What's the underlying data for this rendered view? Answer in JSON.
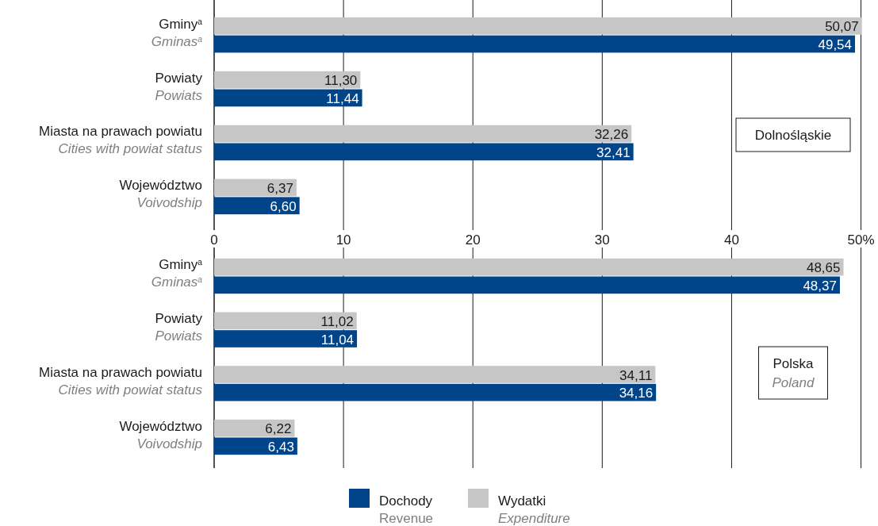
{
  "chart_data": [
    {
      "type": "bar",
      "orientation": "horizontal",
      "categories": [
        "Gminy$^{a}$\nGminas$^{a}$",
        "Powiaty\nPowiats",
        "Miasta na prawach powiatu\nCities with powiat status",
        "Województwo\nVoivodship"
      ],
      "series": [
        {
          "color": "#004489",
          "values": [
            49.54,
            11.44,
            32.41,
            6.6
          ],
          "value_labels": [
            "49,54",
            "11,44",
            "32,41",
            "6,60"
          ]
        },
        {
          "color": "#c6c6c6",
          "values": [
            50.07,
            11.3,
            32.26,
            6.37
          ],
          "value_labels": [
            "50,07",
            "11,30",
            "32,26",
            "6,37"
          ]
        }
      ],
      "xlim": [
        0,
        51.5
      ],
      "xticks": [
        0,
        10,
        20,
        30,
        40,
        {
          "value": 50,
          "label": "50%"
        }
      ],
      "grid": "x",
      "legend": false,
      "annotations": [
        "Dolnośląskie"
      ]
    },
    {
      "type": "bar",
      "orientation": "horizontal",
      "categories": [
        "Gminy$^{a}$\nGminas$^{a}$",
        "Powiaty\nPowiats",
        "Miasta na prawach powiatu\nCities with powiat status",
        "Województwo\nVoivodship"
      ],
      "series": [
        {
          "name": "Dochody\nRevenue",
          "color": "#004489",
          "values": [
            48.37,
            11.04,
            34.16,
            6.43
          ],
          "value_labels": [
            "48,37",
            "11,04",
            "34,16",
            "6,43"
          ]
        },
        {
          "name": "Wydatki\nExpenditure",
          "color": "#c6c6c6",
          "values": [
            48.65,
            11.02,
            34.11,
            6.22
          ],
          "value_labels": [
            "48,65",
            "11,02",
            "34,11",
            "6,22"
          ]
        }
      ],
      "xlim": [
        0,
        51.5
      ],
      "xticks": [
        {
          "value": 0,
          "label": null
        },
        {
          "value": 10,
          "label": null
        },
        {
          "value": 20,
          "label": null
        },
        {
          "value": 30,
          "label": null
        },
        {
          "value": 40,
          "label": null
        },
        {
          "value": 50,
          "label": null
        }
      ],
      "grid": "x",
      "legend": "bottom",
      "annotations": [
        "Polska\nPoland"
      ]
    }
  ]
}
